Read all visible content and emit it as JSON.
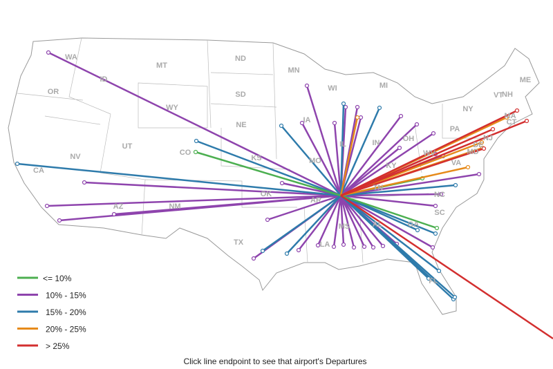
{
  "map": {
    "state_labels": [
      "WA",
      "OR",
      "ID",
      "MT",
      "ND",
      "MN",
      "WI",
      "MI",
      "SD",
      "WY",
      "NE",
      "IA",
      "UT",
      "NV",
      "CA",
      "CO",
      "KS",
      "MO",
      "IL",
      "IN",
      "OH",
      "PA",
      "NY",
      "VT",
      "NH",
      "ME",
      "MA",
      "CT",
      "NJ",
      "MD",
      "DE",
      "WV",
      "VA",
      "KY",
      "TN",
      "NC",
      "SC",
      "GA",
      "AL",
      "MS",
      "LA",
      "AR",
      "OK",
      "TX",
      "NM",
      "AZ",
      "FL"
    ],
    "legend": [
      {
        "label": "<= 10%",
        "color": "#4caf50"
      },
      {
        "label": "10% - 15%",
        "color": "#8e44ad"
      },
      {
        "label": "15% - 20%",
        "color": "#2e7bab"
      },
      {
        "label": "20% - 25%",
        "color": "#e68a1a"
      },
      {
        "label": "> 25%",
        "color": "#d32f2f"
      }
    ],
    "caption": "Click line endpoint to see that airport's Departures"
  }
}
